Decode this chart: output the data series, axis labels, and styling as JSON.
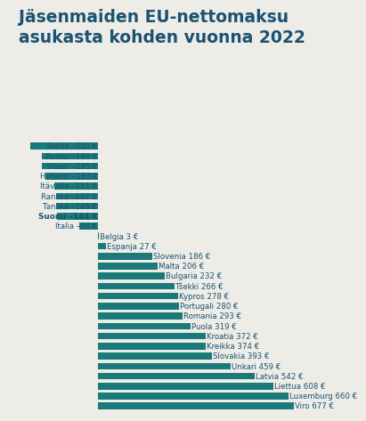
{
  "title": "Jäsenmaiden EU-nettomaksu\nasukasta kohden vuonna 2022",
  "values": [
    -235,
    -196,
    -195,
    -183,
    -151,
    -147,
    -146,
    -144,
    -66,
    3,
    27,
    186,
    206,
    232,
    266,
    278,
    280,
    293,
    319,
    372,
    374,
    393,
    459,
    542,
    608,
    660,
    677
  ],
  "labels": [
    "Saksa –235 €",
    "Ruotsi –196 €",
    "Irlanti –195 €",
    "Hollanti –183 €",
    "Itävalta –151 €",
    "Ranska –147 €",
    "Tanska –146 €",
    "Suomi –144 €",
    "Italia –66 €",
    "Belgia 3 €",
    "Espanja 27 €",
    "Slovenia 186 €",
    "Malta 206 €",
    "Bulgaria 232 €",
    "Tšekki 266 €",
    "Kypros 278 €",
    "Portugali 280 €",
    "Romania 293 €",
    "Puola 319 €",
    "Kroatia 372 €",
    "Kreikka 374 €",
    "Slovakia 393 €",
    "Unkari 459 €",
    "Latvia 542 €",
    "Liettua 608 €",
    "Luxemburg 660 €",
    "Viro 677 €"
  ],
  "bold_index": 7,
  "bar_color": "#1a7a7a",
  "background_color": "#eeece7",
  "title_color": "#1a5272",
  "text_color": "#1a5272",
  "title_fontsize": 13.5,
  "label_fontsize": 6.2
}
